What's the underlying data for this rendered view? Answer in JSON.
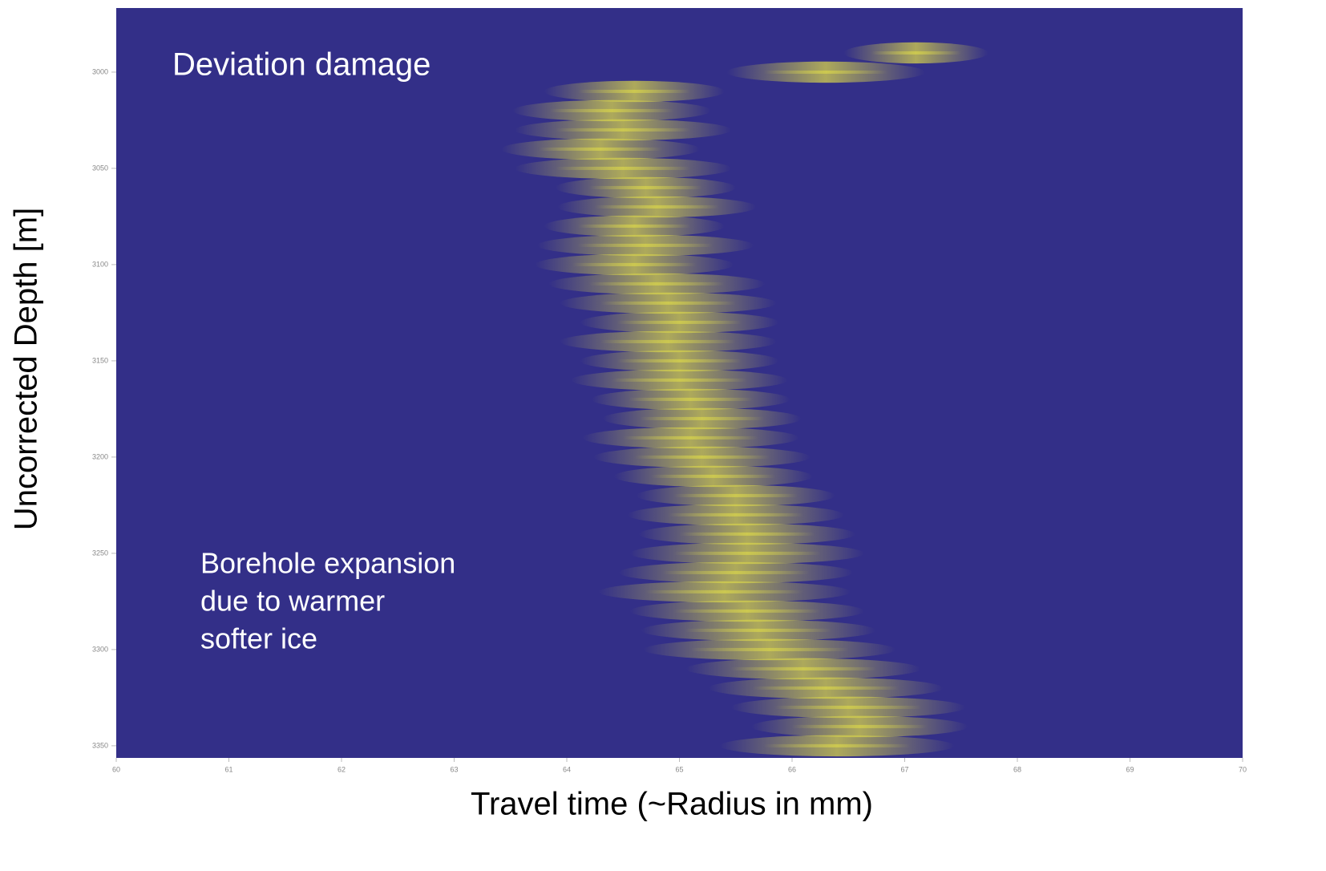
{
  "chart_data": {
    "type": "heatmap",
    "x_label": "Travel time (~Radius in mm)",
    "y_label": "Uncorrected Depth [m]",
    "xlim": [
      60,
      70
    ],
    "xticks": [
      60,
      61,
      62,
      63,
      64,
      65,
      66,
      67,
      68,
      69,
      70
    ],
    "ylim": [
      2966.7,
      3356.3
    ],
    "yticks": [
      3000,
      3050,
      3100,
      3150,
      3200,
      3250,
      3300,
      3350
    ],
    "y_inverted": true,
    "background": "#332f88",
    "color": "#d6d24c",
    "y": [
      2990,
      3000,
      3010,
      3020,
      3030,
      3040,
      3050,
      3060,
      3070,
      3080,
      3090,
      3100,
      3110,
      3120,
      3130,
      3140,
      3150,
      3160,
      3170,
      3180,
      3190,
      3200,
      3210,
      3220,
      3230,
      3240,
      3250,
      3260,
      3270,
      3280,
      3290,
      3300,
      3310,
      3320,
      3330,
      3340,
      3350
    ],
    "x": [
      67.1,
      66.3,
      64.6,
      64.4,
      64.5,
      64.3,
      64.5,
      64.7,
      64.8,
      64.6,
      64.7,
      64.6,
      64.8,
      64.9,
      65.0,
      64.9,
      65.0,
      65.0,
      65.1,
      65.2,
      65.1,
      65.2,
      65.3,
      65.5,
      65.5,
      65.6,
      65.6,
      65.5,
      65.4,
      65.6,
      65.7,
      65.8,
      66.1,
      66.3,
      66.5,
      66.6,
      66.4
    ],
    "size": [
      0.8,
      1.1,
      1.0,
      1.1,
      1.2,
      1.1,
      1.2,
      1.0,
      1.1,
      1.0,
      1.2,
      1.1,
      1.2,
      1.2,
      1.1,
      1.2,
      1.1,
      1.2,
      1.1,
      1.1,
      1.2,
      1.2,
      1.1,
      1.1,
      1.2,
      1.2,
      1.3,
      1.3,
      1.4,
      1.3,
      1.3,
      1.4,
      1.3,
      1.3,
      1.3,
      1.2,
      1.3
    ],
    "annotations": [
      {
        "lines": [
          "Deviation damage"
        ]
      },
      {
        "lines": [
          "Borehole expansion",
          "due to warmer",
          "softer ice"
        ]
      }
    ]
  }
}
